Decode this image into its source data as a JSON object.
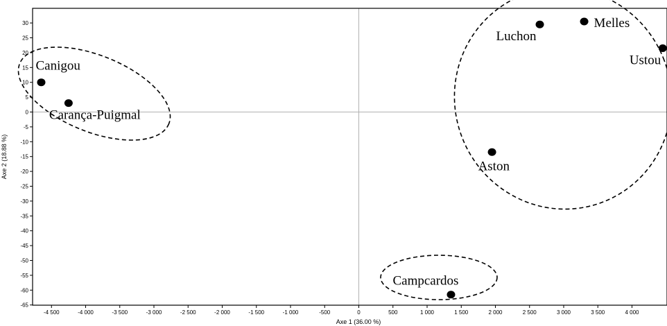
{
  "chart_data": {
    "type": "scatter",
    "xlabel": "Axe 1 (36.00 %)",
    "ylabel": "Axe 2 (18.88 %)",
    "xlim": [
      -4800,
      4500
    ],
    "ylim": [
      -65,
      36
    ],
    "x_ticks": [
      -4500,
      -4000,
      -3500,
      -3000,
      -2500,
      -2000,
      -1500,
      -1000,
      -500,
      0,
      500,
      1000,
      1500,
      2000,
      2500,
      3000,
      3500,
      4000
    ],
    "x_tick_labels": [
      "-4 500",
      "-4 000",
      "-3 500",
      "-3 000",
      "-2 500",
      "-2 000",
      "-1 500",
      "-1 000",
      "-500",
      "0",
      "500",
      "1 000",
      "1 500",
      "2 000",
      "2 500",
      "3 000",
      "3 500",
      "4 000"
    ],
    "y_ticks": [
      30,
      25,
      20,
      15,
      10,
      5,
      0,
      -5,
      -10,
      -15,
      -20,
      -25,
      -30,
      -35,
      -40,
      -45,
      -50,
      -55,
      -60,
      -65
    ],
    "y_tick_labels": [
      "30",
      "25",
      "20",
      "15",
      "10",
      "5",
      "0",
      "-5",
      "-10",
      "-15",
      "-20",
      "-25",
      "-30",
      "-35",
      "-40",
      "-45",
      "-50",
      "-55",
      "-60",
      "-65"
    ],
    "points": [
      {
        "label": "Canigou",
        "x": -4650,
        "y": 10
      },
      {
        "label": "Carança-Puigmal",
        "x": -4250,
        "y": 3
      },
      {
        "label": "Luchon",
        "x": 2650,
        "y": 29.5
      },
      {
        "label": "Melles",
        "x": 3300,
        "y": 30.5
      },
      {
        "label": "Ustou",
        "x": 4450,
        "y": 21.5
      },
      {
        "label": "Aston",
        "x": 1950,
        "y": -13.5
      },
      {
        "label": "Campcardos",
        "x": 1350,
        "y": -61.5
      }
    ],
    "zero_lines": true,
    "grid": false,
    "legend": "none",
    "groups": [
      [
        "Canigou",
        "Carança-Puigmal"
      ],
      [
        "Luchon",
        "Melles",
        "Ustou",
        "Aston"
      ],
      [
        "Campcardos"
      ]
    ]
  }
}
